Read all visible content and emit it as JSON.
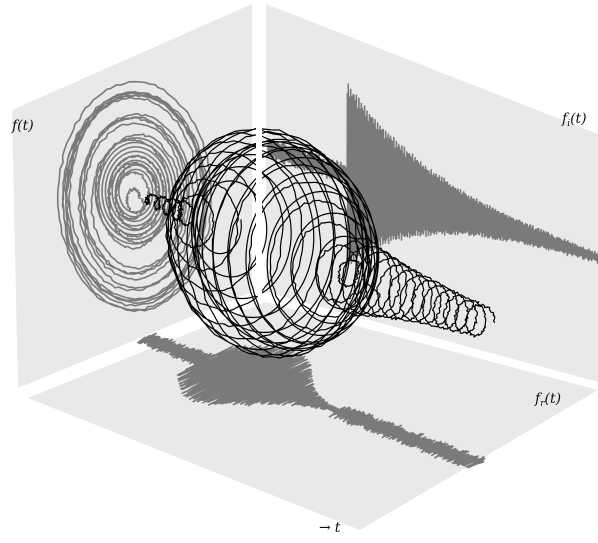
{
  "labels": {
    "left_panel": "f(t)",
    "right_panel_main": "f",
    "right_panel_sub": "i",
    "right_panel_tail": "(t)",
    "floor_main": "f",
    "floor_sub": "r",
    "floor_tail": "(t)",
    "axis_arrow": "→",
    "axis_t": "t"
  },
  "colors": {
    "pane": "#e9e9e9",
    "projection": "#7a7a7a",
    "curve": "#000000"
  }
}
